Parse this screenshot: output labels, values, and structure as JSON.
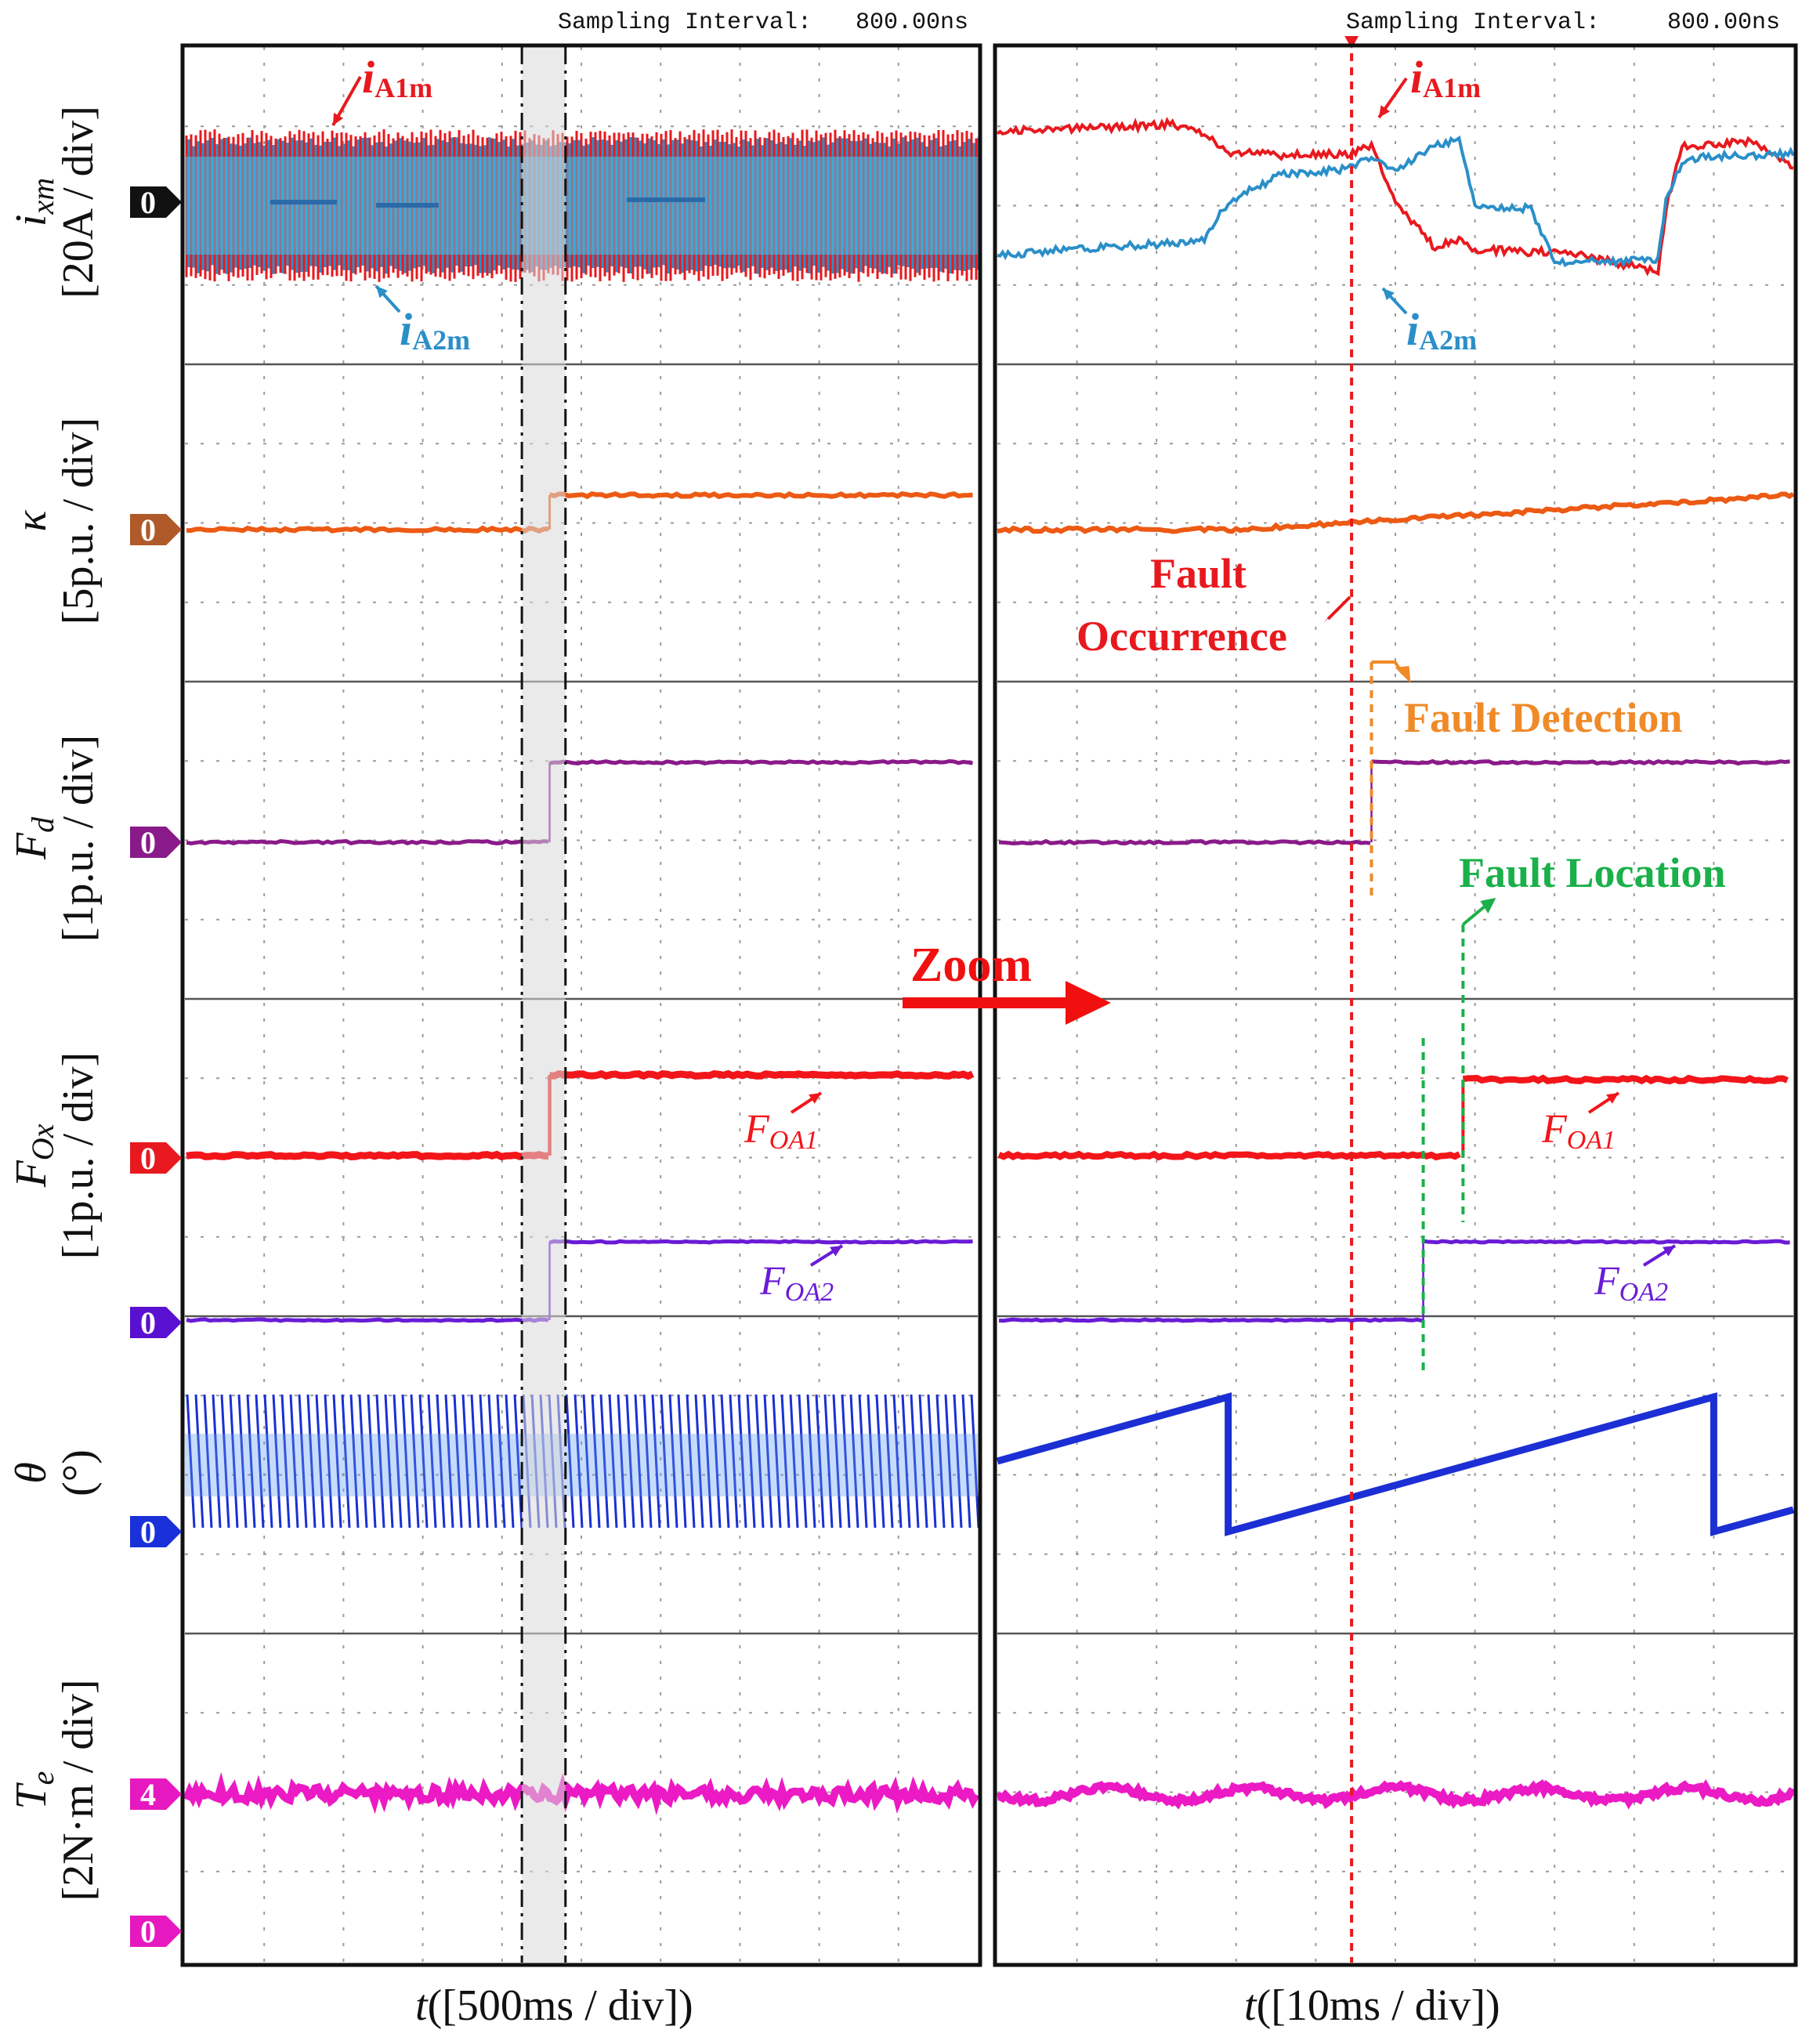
{
  "chart_data": {
    "type": "line",
    "title": "",
    "panels": [
      {
        "id": "overview",
        "sampling_label": "Sampling Interval:",
        "sampling_value": "800.00ns",
        "time_axis": {
          "label_var": "t",
          "label_units": "([500ms / div])"
        },
        "divisions_x": 10,
        "fault_window_div": [
          4.25,
          4.8
        ]
      },
      {
        "id": "zoom",
        "sampling_label": "Sampling Interval:",
        "sampling_value": "800.00ns",
        "time_axis": {
          "label_var": "t",
          "label_units": "([10ms / div])"
        },
        "divisions_x": 10,
        "fault_occurrence_div": 4.45,
        "fault_detection_div": 4.7,
        "fault_location_div": 5.6
      }
    ],
    "rows": [
      {
        "id": "currents",
        "ylabel_var": "i",
        "ylabel_sub": "xm",
        "ylabel_units": "[20A / div]",
        "zero_marker": "0",
        "marker_color": "#111111",
        "series": [
          {
            "name": "iA1m",
            "label_main": "i",
            "label_sub": "A1m",
            "color": "#e8191e"
          },
          {
            "name": "iA2m",
            "label_main": "i",
            "label_sub": "A2m",
            "color": "#2b8fc8"
          }
        ]
      },
      {
        "id": "kappa",
        "ylabel_var": "κ",
        "ylabel_sub": "",
        "ylabel_units": "[5p.u. / div]",
        "zero_marker": "0",
        "marker_color": "#b05a2a",
        "series": [
          {
            "name": "κ",
            "color": "#ec5a14",
            "before": 0,
            "after": 0.45
          }
        ]
      },
      {
        "id": "fd",
        "ylabel_var": "F",
        "ylabel_sub": "d",
        "ylabel_units": "[1p.u. / div]",
        "zero_marker": "0",
        "marker_color": "#8a1a8a",
        "series": [
          {
            "name": "Fd",
            "color": "#8a1a8a",
            "before": 0,
            "after": 1
          }
        ]
      },
      {
        "id": "fox",
        "ylabel_var": "F",
        "ylabel_sub": "Ox",
        "ylabel_units": "[1p.u. / div]",
        "zero_marker": "0",
        "zero_marker_2": "0",
        "marker_color": "#e8191e",
        "marker_color_2": "#5a10d0",
        "series": [
          {
            "name": "FOA1",
            "label_main": "F",
            "label_sub": "OA1",
            "color": "#f2151a",
            "before": 0,
            "after": 1
          },
          {
            "name": "FOA2",
            "label_main": "F",
            "label_sub": "OA2",
            "color": "#6a1bd6",
            "before": 0,
            "after": 1
          }
        ]
      },
      {
        "id": "theta",
        "ylabel_var": "θ",
        "ylabel_sub": "",
        "ylabel_units": "(°)",
        "zero_marker": "0",
        "marker_color": "#1a30d8",
        "series": [
          {
            "name": "θ",
            "color": "#1b2fd4"
          }
        ]
      },
      {
        "id": "te",
        "ylabel_var": "T",
        "ylabel_sub": "e",
        "ylabel_units": "[2N·m / div]",
        "zero_marker": "0",
        "level_marker": "4",
        "marker_color": "#e619c0",
        "series": [
          {
            "name": "Te",
            "color": "#ec1ac4",
            "value": 4
          }
        ]
      }
    ],
    "annotations": {
      "zoom": {
        "text": "Zoom",
        "color": "#f01010"
      },
      "fault_occurrence_line1": "Fault",
      "fault_occurrence_line2": "Occurrence",
      "fault_occurrence_color": "#e8191e",
      "fault_detection": "Fault Detection",
      "fault_detection_color": "#f08a28",
      "fault_location": "Fault Location",
      "fault_location_color": "#1ab04a"
    },
    "grid": true
  }
}
